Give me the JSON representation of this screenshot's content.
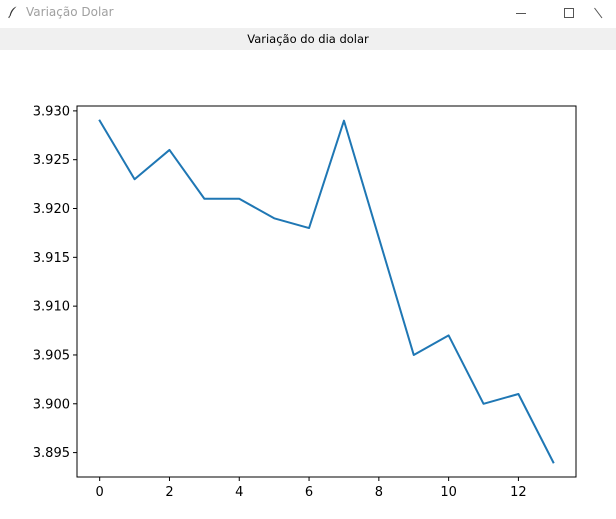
{
  "window": {
    "title": "Variação Dolar",
    "icon": "feather-icon",
    "controls": [
      "minimize-icon",
      "maximize-icon",
      "close-icon"
    ]
  },
  "label": {
    "text": "Variação do dia dolar"
  },
  "chart_data": {
    "type": "line",
    "x": [
      0,
      1,
      2,
      3,
      4,
      5,
      6,
      7,
      8,
      9,
      10,
      11,
      12,
      13
    ],
    "series": [
      {
        "values": [
          3.929,
          3.923,
          3.926,
          3.921,
          3.921,
          3.919,
          3.918,
          3.929,
          3.917,
          3.905,
          3.907,
          3.9,
          3.901,
          3.894
        ],
        "color": "#1f77b4"
      }
    ],
    "xlim": [
      -0.65,
      13.65
    ],
    "ylim": [
      3.8925,
      3.9305
    ],
    "xticks": [
      0,
      2,
      4,
      6,
      8,
      10,
      12
    ],
    "yticks": [
      "3.895",
      "3.900",
      "3.905",
      "3.910",
      "3.915",
      "3.920",
      "3.925",
      "3.930"
    ],
    "grid": false,
    "title": "",
    "xlabel": "",
    "ylabel": ""
  }
}
